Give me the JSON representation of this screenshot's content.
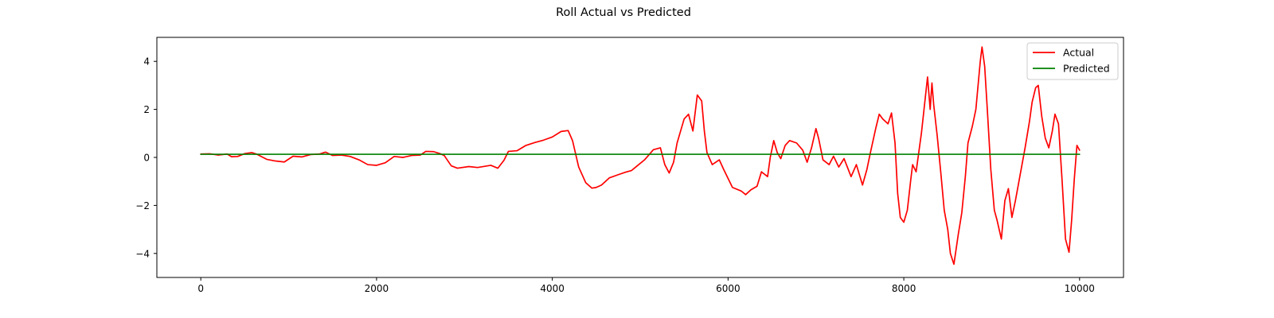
{
  "chart_data": {
    "type": "line",
    "title": "Roll Actual vs Predicted",
    "xlabel": "",
    "ylabel": "",
    "xlim": [
      -500,
      10500
    ],
    "ylim": [
      -5,
      5
    ],
    "x_ticks": [
      0,
      2000,
      4000,
      6000,
      8000,
      10000
    ],
    "y_ticks": [
      -4,
      -2,
      0,
      2,
      4
    ],
    "x_tick_labels": [
      "0",
      "2000",
      "4000",
      "6000",
      "8000",
      "10000"
    ],
    "y_tick_labels": [
      "−4",
      "−2",
      "0",
      "2",
      "4"
    ],
    "grid": false,
    "legend_position": "top-right",
    "series": [
      {
        "name": "Actual",
        "color": "#ff0000",
        "points": [
          [
            0,
            0.14
          ],
          [
            100,
            0.15
          ],
          [
            200,
            0.1
          ],
          [
            300,
            0.14
          ],
          [
            350,
            0.03
          ],
          [
            420,
            0.04
          ],
          [
            500,
            0.16
          ],
          [
            580,
            0.2
          ],
          [
            640,
            0.13
          ],
          [
            750,
            -0.08
          ],
          [
            850,
            -0.15
          ],
          [
            950,
            -0.19
          ],
          [
            1050,
            0.05
          ],
          [
            1150,
            0.02
          ],
          [
            1250,
            0.12
          ],
          [
            1350,
            0.14
          ],
          [
            1420,
            0.22
          ],
          [
            1500,
            0.08
          ],
          [
            1600,
            0.1
          ],
          [
            1700,
            0.04
          ],
          [
            1800,
            -0.1
          ],
          [
            1900,
            -0.3
          ],
          [
            2000,
            -0.33
          ],
          [
            2100,
            -0.22
          ],
          [
            2200,
            0.04
          ],
          [
            2300,
            0.0
          ],
          [
            2400,
            0.08
          ],
          [
            2500,
            0.1
          ],
          [
            2560,
            0.25
          ],
          [
            2650,
            0.24
          ],
          [
            2720,
            0.16
          ],
          [
            2770,
            0.08
          ],
          [
            2800,
            -0.08
          ],
          [
            2850,
            -0.35
          ],
          [
            2920,
            -0.45
          ],
          [
            3050,
            -0.38
          ],
          [
            3150,
            -0.42
          ],
          [
            3300,
            -0.33
          ],
          [
            3380,
            -0.45
          ],
          [
            3450,
            -0.12
          ],
          [
            3500,
            0.25
          ],
          [
            3600,
            0.28
          ],
          [
            3700,
            0.5
          ],
          [
            3800,
            0.62
          ],
          [
            3900,
            0.72
          ],
          [
            4000,
            0.85
          ],
          [
            4100,
            1.08
          ],
          [
            4180,
            1.12
          ],
          [
            4230,
            0.7
          ],
          [
            4300,
            -0.4
          ],
          [
            4380,
            -1.05
          ],
          [
            4450,
            -1.28
          ],
          [
            4500,
            -1.25
          ],
          [
            4560,
            -1.15
          ],
          [
            4650,
            -0.85
          ],
          [
            4750,
            -0.72
          ],
          [
            4830,
            -0.62
          ],
          [
            4900,
            -0.55
          ],
          [
            4950,
            -0.4
          ],
          [
            5050,
            -0.1
          ],
          [
            5150,
            0.32
          ],
          [
            5230,
            0.4
          ],
          [
            5280,
            -0.3
          ],
          [
            5330,
            -0.65
          ],
          [
            5380,
            -0.2
          ],
          [
            5420,
            0.6
          ],
          [
            5500,
            1.6
          ],
          [
            5550,
            1.8
          ],
          [
            5600,
            1.1
          ],
          [
            5650,
            2.6
          ],
          [
            5700,
            2.35
          ],
          [
            5730,
            1.1
          ],
          [
            5760,
            0.2
          ],
          [
            5820,
            -0.3
          ],
          [
            5900,
            -0.1
          ],
          [
            5950,
            -0.5
          ],
          [
            6050,
            -1.25
          ],
          [
            6150,
            -1.4
          ],
          [
            6200,
            -1.55
          ],
          [
            6260,
            -1.35
          ],
          [
            6330,
            -1.2
          ],
          [
            6380,
            -0.6
          ],
          [
            6450,
            -0.8
          ],
          [
            6480,
            0.0
          ],
          [
            6520,
            0.7
          ],
          [
            6560,
            0.2
          ],
          [
            6600,
            -0.05
          ],
          [
            6650,
            0.5
          ],
          [
            6700,
            0.7
          ],
          [
            6780,
            0.6
          ],
          [
            6850,
            0.3
          ],
          [
            6900,
            -0.2
          ],
          [
            6950,
            0.4
          ],
          [
            7000,
            1.2
          ],
          [
            7030,
            0.8
          ],
          [
            7080,
            -0.1
          ],
          [
            7150,
            -0.3
          ],
          [
            7200,
            0.05
          ],
          [
            7260,
            -0.4
          ],
          [
            7320,
            -0.05
          ],
          [
            7400,
            -0.8
          ],
          [
            7460,
            -0.3
          ],
          [
            7530,
            -1.15
          ],
          [
            7580,
            -0.5
          ],
          [
            7620,
            0.2
          ],
          [
            7680,
            1.2
          ],
          [
            7720,
            1.8
          ],
          [
            7760,
            1.6
          ],
          [
            7820,
            1.4
          ],
          [
            7860,
            1.85
          ],
          [
            7900,
            0.6
          ],
          [
            7930,
            -1.5
          ],
          [
            7960,
            -2.5
          ],
          [
            8000,
            -2.7
          ],
          [
            8040,
            -2.2
          ],
          [
            8080,
            -0.9
          ],
          [
            8100,
            -0.3
          ],
          [
            8140,
            -0.6
          ],
          [
            8200,
            1.0
          ],
          [
            8230,
            2.0
          ],
          [
            8270,
            3.35
          ],
          [
            8300,
            2.0
          ],
          [
            8320,
            3.1
          ],
          [
            8340,
            2.2
          ],
          [
            8380,
            0.9
          ],
          [
            8420,
            -0.6
          ],
          [
            8460,
            -2.2
          ],
          [
            8500,
            -3.0
          ],
          [
            8530,
            -4.0
          ],
          [
            8570,
            -4.45
          ],
          [
            8620,
            -3.2
          ],
          [
            8660,
            -2.3
          ],
          [
            8700,
            -0.8
          ],
          [
            8730,
            0.6
          ],
          [
            8780,
            1.3
          ],
          [
            8820,
            2.0
          ],
          [
            8870,
            4.0
          ],
          [
            8890,
            4.6
          ],
          [
            8920,
            3.8
          ],
          [
            8950,
            2.0
          ],
          [
            8990,
            -0.5
          ],
          [
            9030,
            -2.2
          ],
          [
            9060,
            -2.6
          ],
          [
            9110,
            -3.4
          ],
          [
            9150,
            -1.8
          ],
          [
            9190,
            -1.3
          ],
          [
            9230,
            -2.5
          ],
          [
            9270,
            -1.8
          ],
          [
            9320,
            -0.8
          ],
          [
            9380,
            0.4
          ],
          [
            9430,
            1.5
          ],
          [
            9460,
            2.3
          ],
          [
            9500,
            2.9
          ],
          [
            9530,
            3.0
          ],
          [
            9570,
            1.7
          ],
          [
            9610,
            0.8
          ],
          [
            9650,
            0.4
          ],
          [
            9690,
            1.1
          ],
          [
            9720,
            1.8
          ],
          [
            9760,
            1.4
          ],
          [
            9800,
            -0.9
          ],
          [
            9840,
            -3.4
          ],
          [
            9880,
            -3.95
          ],
          [
            9910,
            -2.6
          ],
          [
            9940,
            -0.9
          ],
          [
            9970,
            0.5
          ],
          [
            10000,
            0.3
          ]
        ]
      },
      {
        "name": "Predicted",
        "color": "#008000",
        "points": [
          [
            0,
            0.13
          ],
          [
            10000,
            0.13
          ]
        ]
      }
    ]
  }
}
